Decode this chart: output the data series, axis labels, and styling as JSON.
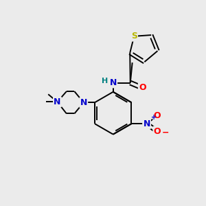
{
  "background_color": "#ebebeb",
  "bond_color": "#000000",
  "atom_colors": {
    "S": "#b8b800",
    "N": "#0000cc",
    "O": "#ff0000",
    "C": "#000000",
    "H": "#008080"
  },
  "figsize": [
    3.0,
    3.0
  ],
  "dpi": 100
}
